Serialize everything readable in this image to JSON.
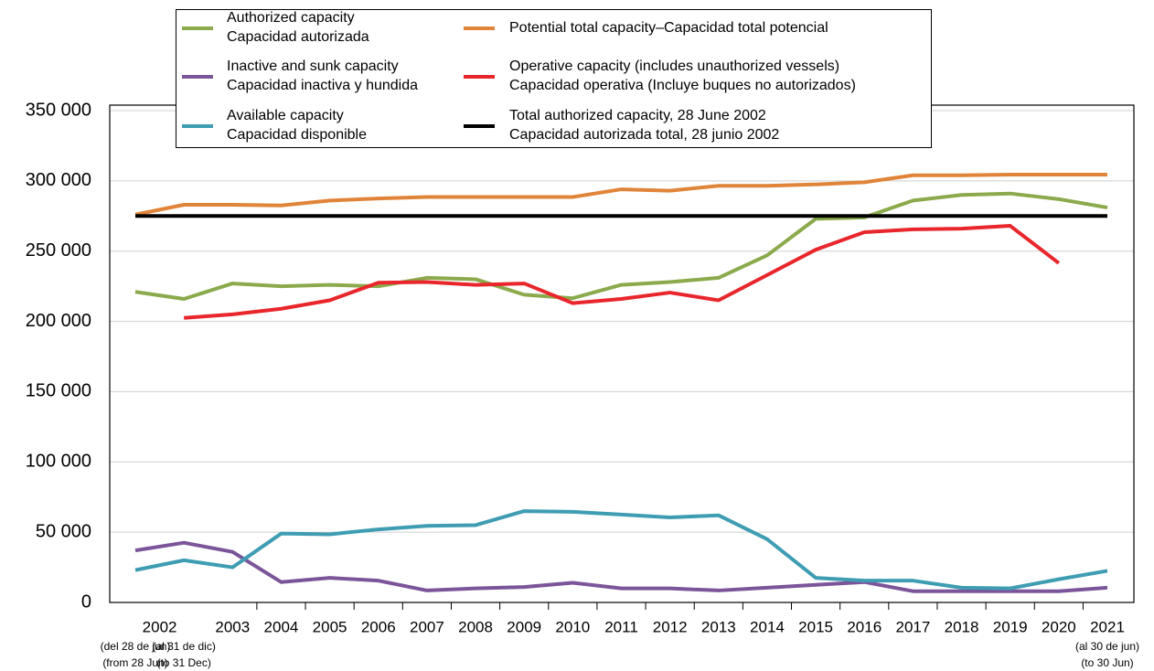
{
  "chart_data": {
    "type": "line",
    "categories": [
      "2002",
      null,
      "2003",
      "2004",
      "2005",
      "2006",
      "2007",
      "2008",
      "2009",
      "2010",
      "2011",
      "2012",
      "2013",
      "2014",
      "2015",
      "2016",
      "2017",
      "2018",
      "2019",
      "2020",
      "2021"
    ],
    "category_notes": [
      [
        "(del 28 de jun)",
        "(from 28 Jun)"
      ],
      [
        "(al 31 de dic)",
        "(to 31 Dec)"
      ],
      null,
      null,
      null,
      null,
      null,
      null,
      null,
      null,
      null,
      null,
      null,
      null,
      null,
      null,
      null,
      null,
      null,
      null,
      [
        "(al 30 de jun)",
        "(to 30 Jun)"
      ]
    ],
    "ylim": [
      0,
      350000
    ],
    "yticks": [
      0,
      {
        "value": 50000,
        "label": "50 000"
      },
      {
        "value": 100000,
        "label": "100 000"
      },
      {
        "value": 150000,
        "label": "150 000"
      },
      {
        "value": 200000,
        "label": "200 000"
      },
      {
        "value": 250000,
        "label": "250 000"
      },
      {
        "value": 300000,
        "label": "300 000"
      },
      {
        "value": 350000,
        "label": "350 000"
      }
    ],
    "grid": true,
    "series": [
      {
        "name": "Authorized capacity\nCapacidad autorizada",
        "color": "#8aaa4c",
        "values": [
          221000,
          216000,
          227000,
          225000,
          226000,
          225000,
          231000,
          230000,
          219000,
          216500,
          226000,
          228000,
          231000,
          247000,
          273000,
          274000,
          286000,
          290000,
          291000,
          287000,
          281000
        ]
      },
      {
        "name": "Inactive and sunk capacity\nCapacidad inactiva y hundida",
        "color": "#7b559a",
        "values": [
          37000,
          42500,
          36000,
          14500,
          17500,
          15500,
          8500,
          10000,
          11000,
          14000,
          10000,
          10000,
          8500,
          10500,
          12500,
          14500,
          8000,
          8000,
          8000,
          8000,
          10500
        ]
      },
      {
        "name": "Available capacity\nCapacidad disponible",
        "color": "#3f9db3",
        "values": [
          23000,
          30000,
          25000,
          49000,
          48500,
          52000,
          54500,
          55000,
          65000,
          64500,
          62500,
          60500,
          62000,
          45000,
          17500,
          15500,
          15500,
          10500,
          10000,
          16500,
          22500
        ]
      },
      {
        "name": "Potential total capacity–Capacidad total potencial",
        "color": "#e0843a",
        "values": [
          276000,
          283000,
          283000,
          282500,
          286000,
          287500,
          288500,
          288500,
          288500,
          288500,
          294000,
          293000,
          296500,
          296500,
          297500,
          299000,
          304000,
          304000,
          304500,
          304500,
          304500
        ]
      },
      {
        "name": "Operative capacity (includes unauthorized vessels)\nCapacidad operativa (Incluye buques no autorizados)",
        "color": "#e8262b",
        "values": [
          null,
          202500,
          205000,
          209000,
          215000,
          227500,
          228000,
          226000,
          227000,
          213000,
          216000,
          220500,
          215000,
          233000,
          251000,
          263500,
          265500,
          266000,
          268000,
          241500,
          null
        ]
      },
      {
        "name": "Total authorized capacity, 28 June 2002\nCapacidad autorizada total, 28 junio 2002",
        "color": "#000000",
        "value": 275000
      }
    ]
  }
}
